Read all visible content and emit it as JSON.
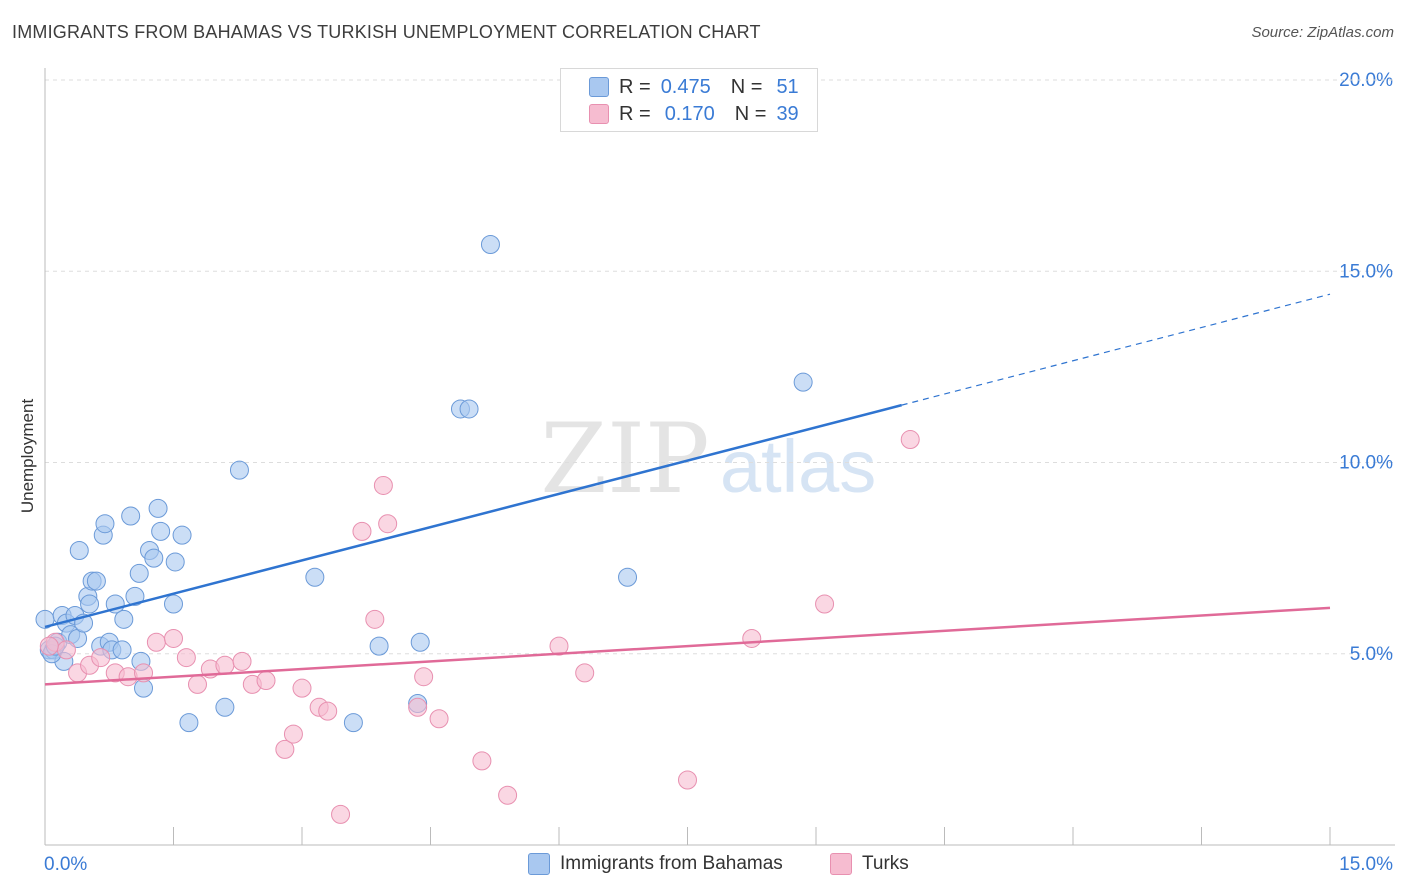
{
  "title": "IMMIGRANTS FROM BAHAMAS VS TURKISH UNEMPLOYMENT CORRELATION CHART",
  "source": "Source: ZipAtlas.com",
  "colors": {
    "blue_fill": "#a9c8f0",
    "blue_stroke": "#6b9ad8",
    "blue_line": "#2f74d0",
    "pink_fill": "#f6bcd0",
    "pink_stroke": "#e890b0",
    "pink_line": "#e06a98",
    "axis_text": "#3a7bd5",
    "grid": "#dddddd"
  },
  "legend": {
    "rows": [
      {
        "r_label": "R =",
        "r_value": "0.475",
        "n_label": "N =",
        "n_value": "51",
        "series": "blue"
      },
      {
        "r_label": "R =",
        "r_value": "0.170",
        "n_label": "N =",
        "n_value": "39",
        "series": "pink"
      }
    ]
  },
  "chart_data": {
    "type": "scatter",
    "title": "IMMIGRANTS FROM BAHAMAS VS TURKISH UNEMPLOYMENT CORRELATION CHART",
    "xlabel": "",
    "ylabel": "Unemployment",
    "xlim": [
      0,
      15
    ],
    "ylim": [
      0,
      20
    ],
    "x_tick_labels": [
      "0.0%",
      "15.0%"
    ],
    "y_ticks": [
      {
        "value": 5,
        "label": "5.0%"
      },
      {
        "value": 10,
        "label": "10.0%"
      },
      {
        "value": 15,
        "label": "15.0%"
      },
      {
        "value": 20,
        "label": "20.0%"
      }
    ],
    "grid": true,
    "watermark": {
      "zip": "ZIP",
      "atlas": "atlas"
    },
    "series": [
      {
        "name": "Immigrants from Bahamas",
        "color": "blue",
        "trend": {
          "x0": 0,
          "y0": 5.7,
          "x1": 10.0,
          "y1": 11.5,
          "dash_to_x": 15.0,
          "dash_to_y": 14.4
        },
        "points": [
          [
            0.0,
            5.9
          ],
          [
            0.05,
            5.1
          ],
          [
            0.1,
            5.1
          ],
          [
            0.15,
            5.3
          ],
          [
            0.2,
            6.0
          ],
          [
            0.22,
            4.8
          ],
          [
            0.25,
            5.8
          ],
          [
            0.3,
            5.5
          ],
          [
            0.35,
            6.0
          ],
          [
            0.38,
            5.4
          ],
          [
            0.4,
            7.7
          ],
          [
            0.45,
            5.8
          ],
          [
            0.5,
            6.5
          ],
          [
            0.52,
            6.3
          ],
          [
            0.55,
            6.9
          ],
          [
            0.6,
            6.9
          ],
          [
            0.65,
            5.2
          ],
          [
            0.68,
            8.1
          ],
          [
            0.7,
            8.4
          ],
          [
            0.75,
            5.3
          ],
          [
            0.78,
            5.1
          ],
          [
            0.82,
            6.3
          ],
          [
            0.9,
            5.1
          ],
          [
            0.92,
            5.9
          ],
          [
            1.0,
            8.6
          ],
          [
            1.05,
            6.5
          ],
          [
            1.1,
            7.1
          ],
          [
            1.12,
            4.8
          ],
          [
            1.15,
            4.1
          ],
          [
            1.22,
            7.7
          ],
          [
            1.27,
            7.5
          ],
          [
            1.32,
            8.8
          ],
          [
            1.35,
            8.2
          ],
          [
            1.5,
            6.3
          ],
          [
            1.52,
            7.4
          ],
          [
            1.6,
            8.1
          ],
          [
            1.68,
            3.2
          ],
          [
            2.1,
            3.6
          ],
          [
            2.27,
            9.8
          ],
          [
            3.15,
            7.0
          ],
          [
            3.6,
            3.2
          ],
          [
            3.9,
            5.2
          ],
          [
            4.35,
            3.7
          ],
          [
            4.38,
            5.3
          ],
          [
            4.85,
            11.4
          ],
          [
            4.95,
            11.4
          ],
          [
            5.2,
            15.7
          ],
          [
            6.8,
            7.0
          ],
          [
            8.85,
            12.1
          ],
          [
            0.08,
            5.0
          ],
          [
            0.12,
            5.2
          ]
        ]
      },
      {
        "name": "Turks",
        "color": "pink",
        "trend": {
          "x0": 0,
          "y0": 4.2,
          "x1": 15.0,
          "y1": 6.2
        },
        "points": [
          [
            0.12,
            5.3
          ],
          [
            0.25,
            5.1
          ],
          [
            0.38,
            4.5
          ],
          [
            0.52,
            4.7
          ],
          [
            0.65,
            4.9
          ],
          [
            0.82,
            4.5
          ],
          [
            0.97,
            4.4
          ],
          [
            1.15,
            4.5
          ],
          [
            1.3,
            5.3
          ],
          [
            1.5,
            5.4
          ],
          [
            1.65,
            4.9
          ],
          [
            1.78,
            4.2
          ],
          [
            1.93,
            4.6
          ],
          [
            2.1,
            4.7
          ],
          [
            2.3,
            4.8
          ],
          [
            2.42,
            4.2
          ],
          [
            2.58,
            4.3
          ],
          [
            2.8,
            2.5
          ],
          [
            2.9,
            2.9
          ],
          [
            3.0,
            4.1
          ],
          [
            3.2,
            3.6
          ],
          [
            3.3,
            3.5
          ],
          [
            3.45,
            0.8
          ],
          [
            3.7,
            8.2
          ],
          [
            3.85,
            5.9
          ],
          [
            3.95,
            9.4
          ],
          [
            4.0,
            8.4
          ],
          [
            4.35,
            3.6
          ],
          [
            4.42,
            4.4
          ],
          [
            4.6,
            3.3
          ],
          [
            5.1,
            2.2
          ],
          [
            5.4,
            1.3
          ],
          [
            6.0,
            5.2
          ],
          [
            6.3,
            4.5
          ],
          [
            7.5,
            1.7
          ],
          [
            8.25,
            5.4
          ],
          [
            9.1,
            6.3
          ],
          [
            10.1,
            10.6
          ],
          [
            0.05,
            5.2
          ]
        ]
      }
    ]
  },
  "bottom_legend": {
    "items": [
      {
        "label": "Immigrants from Bahamas",
        "color": "blue"
      },
      {
        "label": "Turks",
        "color": "pink"
      }
    ]
  }
}
